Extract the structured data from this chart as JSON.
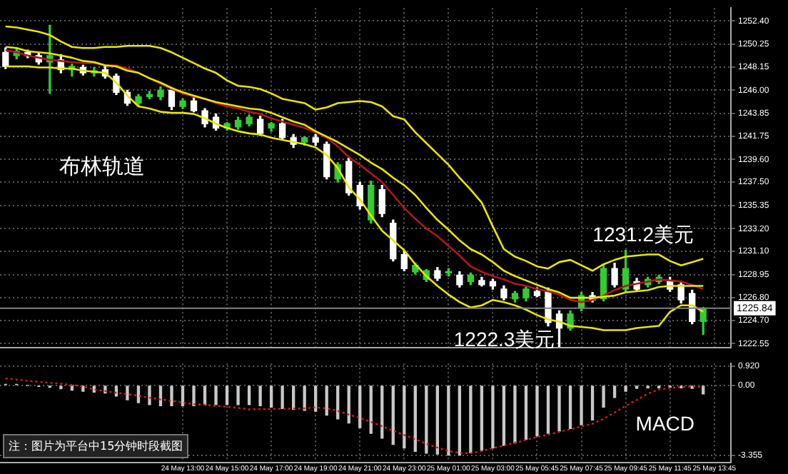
{
  "chart_data": [
    {
      "type": "candlestick",
      "ohlc": [
        [
          1249.5,
          1249.9,
          1248.0,
          1248.2
        ],
        [
          1249.2,
          1249.8,
          1248.9,
          1249.6
        ],
        [
          1249.5,
          1249.7,
          1249.0,
          1249.2
        ],
        [
          1249.2,
          1249.4,
          1248.4,
          1248.6
        ],
        [
          1248.6,
          1252.0,
          1245.7,
          1249.2
        ],
        [
          1248.8,
          1249.3,
          1247.6,
          1247.9
        ],
        [
          1247.9,
          1248.4,
          1247.3,
          1248.2
        ],
        [
          1248.1,
          1248.3,
          1247.4,
          1247.6
        ],
        [
          1247.6,
          1248.1,
          1247.3,
          1247.8
        ],
        [
          1247.9,
          1248.2,
          1247.1,
          1247.3
        ],
        [
          1247.3,
          1247.5,
          1245.6,
          1245.8
        ],
        [
          1245.8,
          1246.0,
          1244.6,
          1244.8
        ],
        [
          1244.8,
          1245.6,
          1244.5,
          1245.4
        ],
        [
          1245.4,
          1245.9,
          1245.2,
          1245.6
        ],
        [
          1245.4,
          1246.3,
          1245.1,
          1246.0
        ],
        [
          1246.0,
          1246.2,
          1244.2,
          1244.5
        ],
        [
          1244.5,
          1245.2,
          1244.3,
          1245.0
        ],
        [
          1245.0,
          1245.3,
          1244.0,
          1244.1
        ],
        [
          1244.1,
          1244.3,
          1242.6,
          1242.9
        ],
        [
          1243.5,
          1243.8,
          1242.3,
          1242.5
        ],
        [
          1242.5,
          1243.0,
          1242.3,
          1242.9
        ],
        [
          1242.6,
          1243.5,
          1242.4,
          1243.2
        ],
        [
          1242.9,
          1243.7,
          1242.7,
          1243.5
        ],
        [
          1243.3,
          1243.6,
          1241.8,
          1242.0
        ],
        [
          1242.5,
          1243.0,
          1242.2,
          1242.9
        ],
        [
          1242.9,
          1243.3,
          1241.4,
          1241.6
        ],
        [
          1241.6,
          1241.9,
          1240.7,
          1241.0
        ],
        [
          1241.2,
          1241.7,
          1240.9,
          1241.6
        ],
        [
          1241.6,
          1241.9,
          1240.9,
          1241.2
        ],
        [
          1241.0,
          1241.2,
          1237.8,
          1238.0
        ],
        [
          1237.8,
          1239.3,
          1237.5,
          1239.1
        ],
        [
          1239.4,
          1239.8,
          1236.3,
          1236.5
        ],
        [
          1237.2,
          1237.5,
          1235.0,
          1235.3
        ],
        [
          1234.0,
          1237.6,
          1233.7,
          1237.2
        ],
        [
          1236.8,
          1237.2,
          1234.3,
          1234.6
        ],
        [
          1233.7,
          1234.0,
          1230.2,
          1230.4
        ],
        [
          1230.8,
          1231.1,
          1229.3,
          1229.5
        ],
        [
          1229.2,
          1230.0,
          1229.0,
          1229.8
        ],
        [
          1228.5,
          1229.4,
          1228.3,
          1229.3
        ],
        [
          1229.3,
          1229.6,
          1228.4,
          1228.6
        ],
        [
          1229.1,
          1229.5,
          1228.8,
          1229.2
        ],
        [
          1228.9,
          1229.2,
          1227.8,
          1228.0
        ],
        [
          1228.3,
          1229.1,
          1228.0,
          1228.9
        ],
        [
          1228.4,
          1228.7,
          1227.9,
          1228.0
        ],
        [
          1228.3,
          1228.5,
          1227.6,
          1227.9
        ],
        [
          1227.6,
          1227.9,
          1226.6,
          1226.8
        ],
        [
          1226.7,
          1227.4,
          1226.4,
          1227.2
        ],
        [
          1226.8,
          1227.8,
          1226.5,
          1227.6
        ],
        [
          1227.4,
          1227.7,
          1226.9,
          1227.0
        ],
        [
          1227.4,
          1227.7,
          1224.2,
          1224.5
        ],
        [
          1225.3,
          1225.6,
          1222.3,
          1224.0
        ],
        [
          1224.0,
          1225.6,
          1223.8,
          1225.3
        ],
        [
          1225.9,
          1227.3,
          1225.6,
          1227.0
        ],
        [
          1227.0,
          1227.3,
          1226.4,
          1226.6
        ],
        [
          1226.7,
          1229.9,
          1226.5,
          1229.5
        ],
        [
          1229.5,
          1230.0,
          1227.8,
          1228.0
        ],
        [
          1227.6,
          1231.2,
          1227.4,
          1229.5
        ],
        [
          1228.3,
          1228.6,
          1227.4,
          1227.6
        ],
        [
          1228.0,
          1228.7,
          1227.8,
          1228.5
        ],
        [
          1228.3,
          1228.9,
          1228.1,
          1228.7
        ],
        [
          1228.3,
          1228.7,
          1227.4,
          1227.6
        ],
        [
          1228.0,
          1228.3,
          1226.3,
          1226.6
        ],
        [
          1227.2,
          1227.5,
          1224.4,
          1224.6
        ],
        [
          1224.6,
          1225.9,
          1223.4,
          1225.84
        ],
        null,
        null
      ],
      "colors": [
        "#ffffff",
        "#33cc33",
        "#ffffff",
        "#ffffff",
        "#33cc33",
        "#ffffff",
        "#33cc33",
        "#ffffff",
        "#33cc33",
        "#ffffff",
        "#ffffff",
        "#ffffff",
        "#33cc33",
        "#33cc33",
        "#33cc33",
        "#ffffff",
        "#33cc33",
        "#ffffff",
        "#ffffff",
        "#ffffff",
        "#33cc33",
        "#33cc33",
        "#33cc33",
        "#ffffff",
        "#33cc33",
        "#ffffff",
        "#ffffff",
        "#33cc33",
        "#ffffff",
        "#ffffff",
        "#33cc33",
        "#ffffff",
        "#ffffff",
        "#33cc33",
        "#ffffff",
        "#ffffff",
        "#ffffff",
        "#33cc33",
        "#33cc33",
        "#ffffff",
        "#33cc33",
        "#ffffff",
        "#33cc33",
        "#ffffff",
        "#ffffff",
        "#ffffff",
        "#33cc33",
        "#33cc33",
        "#ffffff",
        "#ffffff",
        "#ffffff",
        "#33cc33",
        "#33cc33",
        "#ffffff",
        "#33cc33",
        "#ffffff",
        "#33cc33",
        "#ffffff",
        "#33cc33",
        "#33cc33",
        "#ffffff",
        "#ffffff",
        "#ffffff",
        "#33cc33",
        null,
        null
      ],
      "series": [
        {
          "type": "line",
          "color": "#e6e600",
          "values": [
            1251.9,
            1251.8,
            1251.6,
            1251.4,
            1251.1,
            1250.5,
            1250.0,
            1249.9,
            1249.9,
            1250.0,
            1250.0,
            1250.1,
            1250.1,
            1250.1,
            1249.9,
            1249.5,
            1249.0,
            1248.5,
            1248.0,
            1247.6,
            1246.9,
            1246.4,
            1246.3,
            1246.1,
            1245.7,
            1245.2,
            1245.0,
            1244.8,
            1244.2,
            1244.4,
            1244.8,
            1244.9,
            1245.0,
            1244.9,
            1244.5,
            1243.6,
            1243.3,
            1242.1,
            1241.1,
            1240.1,
            1239.1,
            1237.9,
            1236.8,
            1235.6,
            1233.4,
            1231.3,
            1230.6,
            1230.2,
            1229.7,
            1229.5,
            1230.1,
            1230.3,
            1229.8,
            1229.3,
            1229.9,
            1230.3,
            1230.6,
            1230.7,
            1230.8,
            1230.8,
            1230.2,
            1229.8,
            1230.1,
            1230.4,
            null,
            null
          ]
        },
        {
          "type": "line",
          "color": "#e6e600",
          "values": [
            1250.0,
            1249.9,
            1249.6,
            1249.5,
            1249.4,
            1249.2,
            1249.0,
            1248.7,
            1248.6,
            1248.3,
            1248.2,
            1247.8,
            1247.6,
            1247.1,
            1246.7,
            1246.2,
            1245.8,
            1245.5,
            1245.2,
            1244.9,
            1244.7,
            1244.5,
            1244.3,
            1244.2,
            1243.9,
            1243.5,
            1243.1,
            1242.8,
            1242.2,
            1241.7,
            1241.2,
            1240.6,
            1240.0,
            1239.3,
            1238.7,
            1237.9,
            1237.2,
            1236.3,
            1235.1,
            1234.0,
            1233.1,
            1232.1,
            1231.3,
            1230.8,
            1230.1,
            1229.3,
            1228.8,
            1228.4,
            1228.0,
            1227.6,
            1227.3,
            1226.8,
            1226.8,
            1226.8,
            1226.9,
            1227.0,
            1227.3,
            1227.4,
            1227.5,
            1227.8,
            1227.9,
            1227.9,
            1227.9,
            1227.9,
            null,
            null
          ]
        },
        {
          "type": "line",
          "color": "#e6e600",
          "values": [
            1248.2,
            1248.2,
            1248.2,
            1248.1,
            1248.1,
            1248.0,
            1248.0,
            1247.8,
            1247.7,
            1247.6,
            1246.7,
            1245.5,
            1244.5,
            1244.3,
            1244.0,
            1243.9,
            1243.9,
            1243.8,
            1243.4,
            1242.9,
            1242.5,
            1242.2,
            1242.0,
            1241.9,
            1241.6,
            1241.4,
            1241.2,
            1241.0,
            1240.7,
            1240.0,
            1238.8,
            1237.0,
            1235.9,
            1234.4,
            1233.0,
            1232.1,
            1231.2,
            1229.9,
            1228.8,
            1227.9,
            1227.1,
            1226.4,
            1225.9,
            1226.1,
            1226.6,
            1226.4,
            1226.1,
            1225.7,
            1225.2,
            1224.8,
            1224.6,
            1224.2,
            1224.1,
            1224.0,
            1223.8,
            1223.8,
            1223.8,
            1224.0,
            1224.1,
            1224.2,
            1225.5,
            1226.1,
            1226.1,
            1225.5,
            null,
            null
          ]
        },
        {
          "type": "line",
          "color": "#b01818",
          "values": [
            1249.7,
            1249.5,
            1249.2,
            1249.0,
            1248.8,
            1248.7,
            1248.6,
            1248.5,
            1248.5,
            1248.3,
            1248.3,
            1248.0,
            1247.6,
            1247.1,
            1246.6,
            1246.1,
            1245.7,
            1245.4,
            1245.2,
            1244.8,
            1244.5,
            1244.3,
            1244.0,
            1243.8,
            1243.4,
            1243.1,
            1242.8,
            1242.5,
            1242.1,
            1241.6,
            1240.8,
            1239.8,
            1239.1,
            1238.3,
            1237.5,
            1236.3,
            1235.1,
            1234.1,
            1233.2,
            1232.5,
            1231.6,
            1230.7,
            1229.7,
            1229.2,
            1228.8,
            1228.5,
            1228.1,
            1227.9,
            1227.6,
            1227.4,
            1227.1,
            1226.6,
            1226.4,
            1226.6,
            1227.0,
            1227.5,
            1227.9,
            1228.1,
            1228.3,
            1228.5,
            1228.4,
            1228.3,
            1228.0,
            1227.6,
            null,
            null
          ]
        }
      ],
      "ylim": [
        1222.2,
        1253.6
      ],
      "yticks": [
        {
          "value": 1222.55,
          "label": "1222.55"
        },
        {
          "value": 1224.7,
          "label": "1224.70"
        },
        {
          "value": 1226.8,
          "label": "1226.80"
        },
        {
          "value": 1228.95,
          "label": "1228.95"
        },
        {
          "value": 1231.1,
          "label": "1231.10"
        },
        {
          "value": 1233.2,
          "label": "1233.20"
        },
        {
          "value": 1235.35,
          "label": "1235.35"
        },
        {
          "value": 1237.5,
          "label": "1237.50"
        },
        {
          "value": 1239.6,
          "label": "1239.60"
        },
        {
          "value": 1241.75,
          "label": "1241.75"
        },
        {
          "value": 1243.85,
          "label": "1243.85"
        },
        {
          "value": 1246.0,
          "label": "1246.00"
        },
        {
          "value": 1248.15,
          "label": "1248.15"
        },
        {
          "value": 1250.25,
          "label": "1250.25"
        },
        {
          "value": 1252.4,
          "label": "1252.40"
        }
      ],
      "ref_lines": [
        {
          "axis": "y",
          "value": 1225.84,
          "label": "1225.84",
          "color": "#808080"
        }
      ],
      "annotations": [
        "布林轨道",
        {
          "text": "1231.2美元",
          "y": 1231.2
        },
        "1222.3美元"
      ],
      "grid": true,
      "legend": false,
      "tick_labels": "y",
      "marker": "none"
    },
    {
      "type": "bar",
      "categories": [
        null,
        null,
        null,
        null,
        null,
        null,
        null,
        null,
        null,
        null,
        null,
        null,
        null,
        null,
        null,
        null,
        "24 May 13:00",
        null,
        null,
        null,
        "24 May 15:00",
        null,
        null,
        null,
        "24 May 17:00",
        null,
        null,
        null,
        "24 May 19:00",
        null,
        null,
        null,
        "24 May 21:00",
        null,
        null,
        null,
        "24 May 23:00",
        null,
        null,
        null,
        "25 May 01:00",
        null,
        null,
        null,
        "25 May 03:00",
        null,
        null,
        null,
        "25 May 05:45",
        null,
        null,
        null,
        "25 May 07:45",
        null,
        null,
        null,
        "25 May 09:45",
        null,
        null,
        null,
        "25 May 11:45",
        null,
        null,
        null,
        "25 May 13:45",
        null
      ],
      "series": [
        {
          "type": "bar",
          "color": "#c8c8c8",
          "values": [
            0.05,
            0.05,
            0,
            -0.05,
            -0.09,
            -0.16,
            -0.23,
            -0.28,
            -0.32,
            -0.37,
            -0.51,
            -0.69,
            -0.83,
            -0.92,
            -0.97,
            -0.97,
            -0.97,
            -0.97,
            -0.94,
            -0.92,
            -0.92,
            -0.92,
            -0.92,
            -0.97,
            -1.04,
            -1.11,
            -1.15,
            -1.2,
            -1.24,
            -1.43,
            -1.61,
            -1.8,
            -2.03,
            -2.3,
            -2.53,
            -2.83,
            -3.0,
            -3.16,
            -3.25,
            -3.29,
            -3.34,
            -3.34,
            -3.23,
            -3.11,
            -3.0,
            -2.88,
            -2.76,
            -2.58,
            -2.42,
            -2.3,
            -2.19,
            -2.07,
            -1.89,
            -1.66,
            -1.04,
            -0.58,
            -0.28,
            -0.14,
            -0.12,
            -0.12,
            -0.09,
            -0.12,
            -0.14,
            -0.41,
            null,
            null
          ]
        },
        {
          "type": "line",
          "color": "#d02020",
          "line_style": "dotted",
          "values": [
            0.33,
            0.28,
            0.22,
            0.17,
            0.12,
            0.08,
            0.02,
            -0.05,
            -0.2,
            -0.27,
            -0.35,
            -0.42,
            -0.5,
            -0.59,
            -0.67,
            -0.74,
            -0.82,
            -0.9,
            -0.93,
            -0.98,
            -1.03,
            -1.08,
            -1.15,
            -1.14,
            -1.13,
            -1.12,
            -1.11,
            -1.1,
            -1.06,
            -1.1,
            -1.22,
            -1.4,
            -1.56,
            -1.75,
            -1.96,
            -2.17,
            -2.38,
            -2.58,
            -2.8,
            -2.98,
            -3.14,
            -3.24,
            -3.25,
            -3.15,
            -3.01,
            -2.88,
            -2.75,
            -2.62,
            -2.48,
            -2.36,
            -2.23,
            -2.1,
            -1.97,
            -1.84,
            -1.6,
            -1.3,
            -0.98,
            -0.7,
            -0.4,
            -0.2,
            -0.12,
            -0.08,
            -0.05,
            -0.07,
            null,
            null
          ]
        }
      ],
      "ylim": [
        -3.7,
        1.05
      ],
      "yticks": [
        {
          "value": 0.92,
          "label": "0.920"
        },
        {
          "value": 0,
          "label": "0.00"
        },
        {
          "value": -3.355,
          "label": "-3.355"
        }
      ],
      "annotations": [
        "MACD",
        "注：图片为平台中15分钟时段截图"
      ],
      "grid": true,
      "legend": false,
      "marker": "none"
    }
  ]
}
